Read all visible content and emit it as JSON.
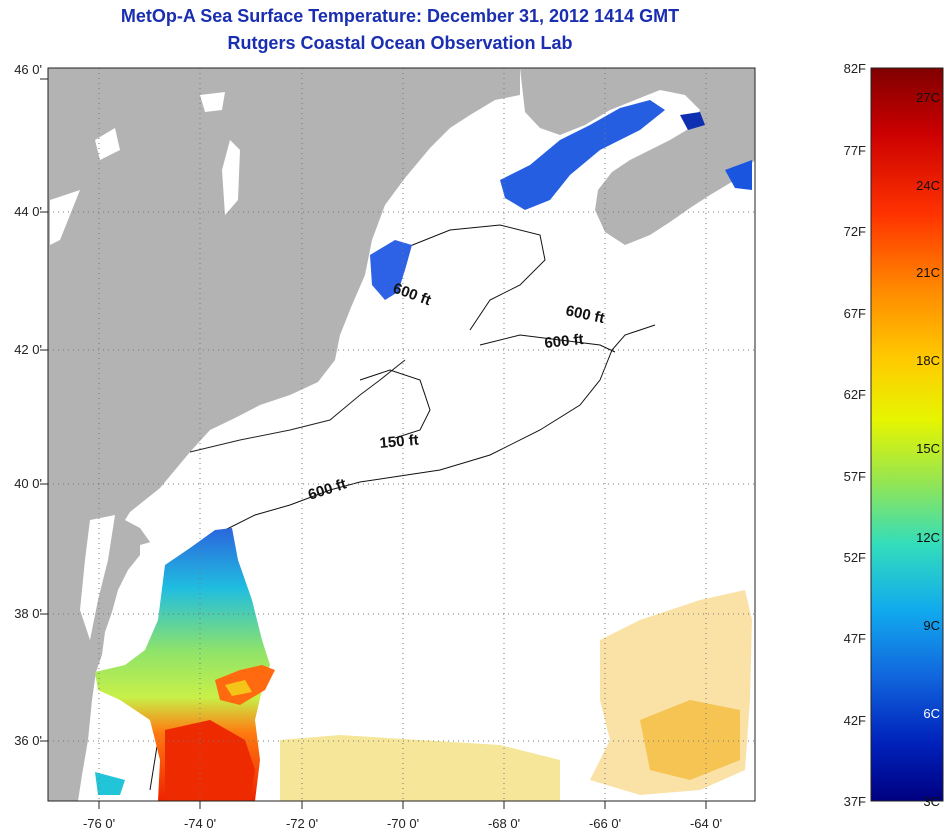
{
  "header": {
    "title": "MetOp-A Sea Surface Temperature:  December 31, 2012 1414 GMT",
    "subtitle": "Rutgers Coastal Ocean Observation Lab"
  },
  "map": {
    "lat_labels": [
      "46 0'",
      "44 0'",
      "42 0'",
      "40 0'",
      "38 0'",
      "36 0'"
    ],
    "lon_labels": [
      "-76 0'",
      "-74 0'",
      "-72 0'",
      "-70 0'",
      "-68 0'",
      "-66 0'",
      "-64 0'"
    ],
    "isobath_labels": [
      "600 ft",
      "600 ft",
      "600 ft",
      "150 ft",
      "600 ft"
    ],
    "colors": {
      "land": "#b3b3b3",
      "ocean": "#ffffff",
      "grid": "#777777"
    }
  },
  "colorbar": {
    "fahrenheit_labels": [
      "82F",
      "77F",
      "72F",
      "67F",
      "62F",
      "57F",
      "52F",
      "47F",
      "42F",
      "37F"
    ],
    "celsius_labels": [
      "27C",
      "24C",
      "21C",
      "18C",
      "15C",
      "12C",
      "9C",
      "6C",
      "3C"
    ],
    "gradient_colors": [
      "#800000",
      "#cc0000",
      "#ff3300",
      "#ff8800",
      "#ffcc00",
      "#e6f500",
      "#9ae64d",
      "#33ddbb",
      "#11aaee",
      "#1166dd",
      "#0022bb",
      "#000080"
    ]
  }
}
